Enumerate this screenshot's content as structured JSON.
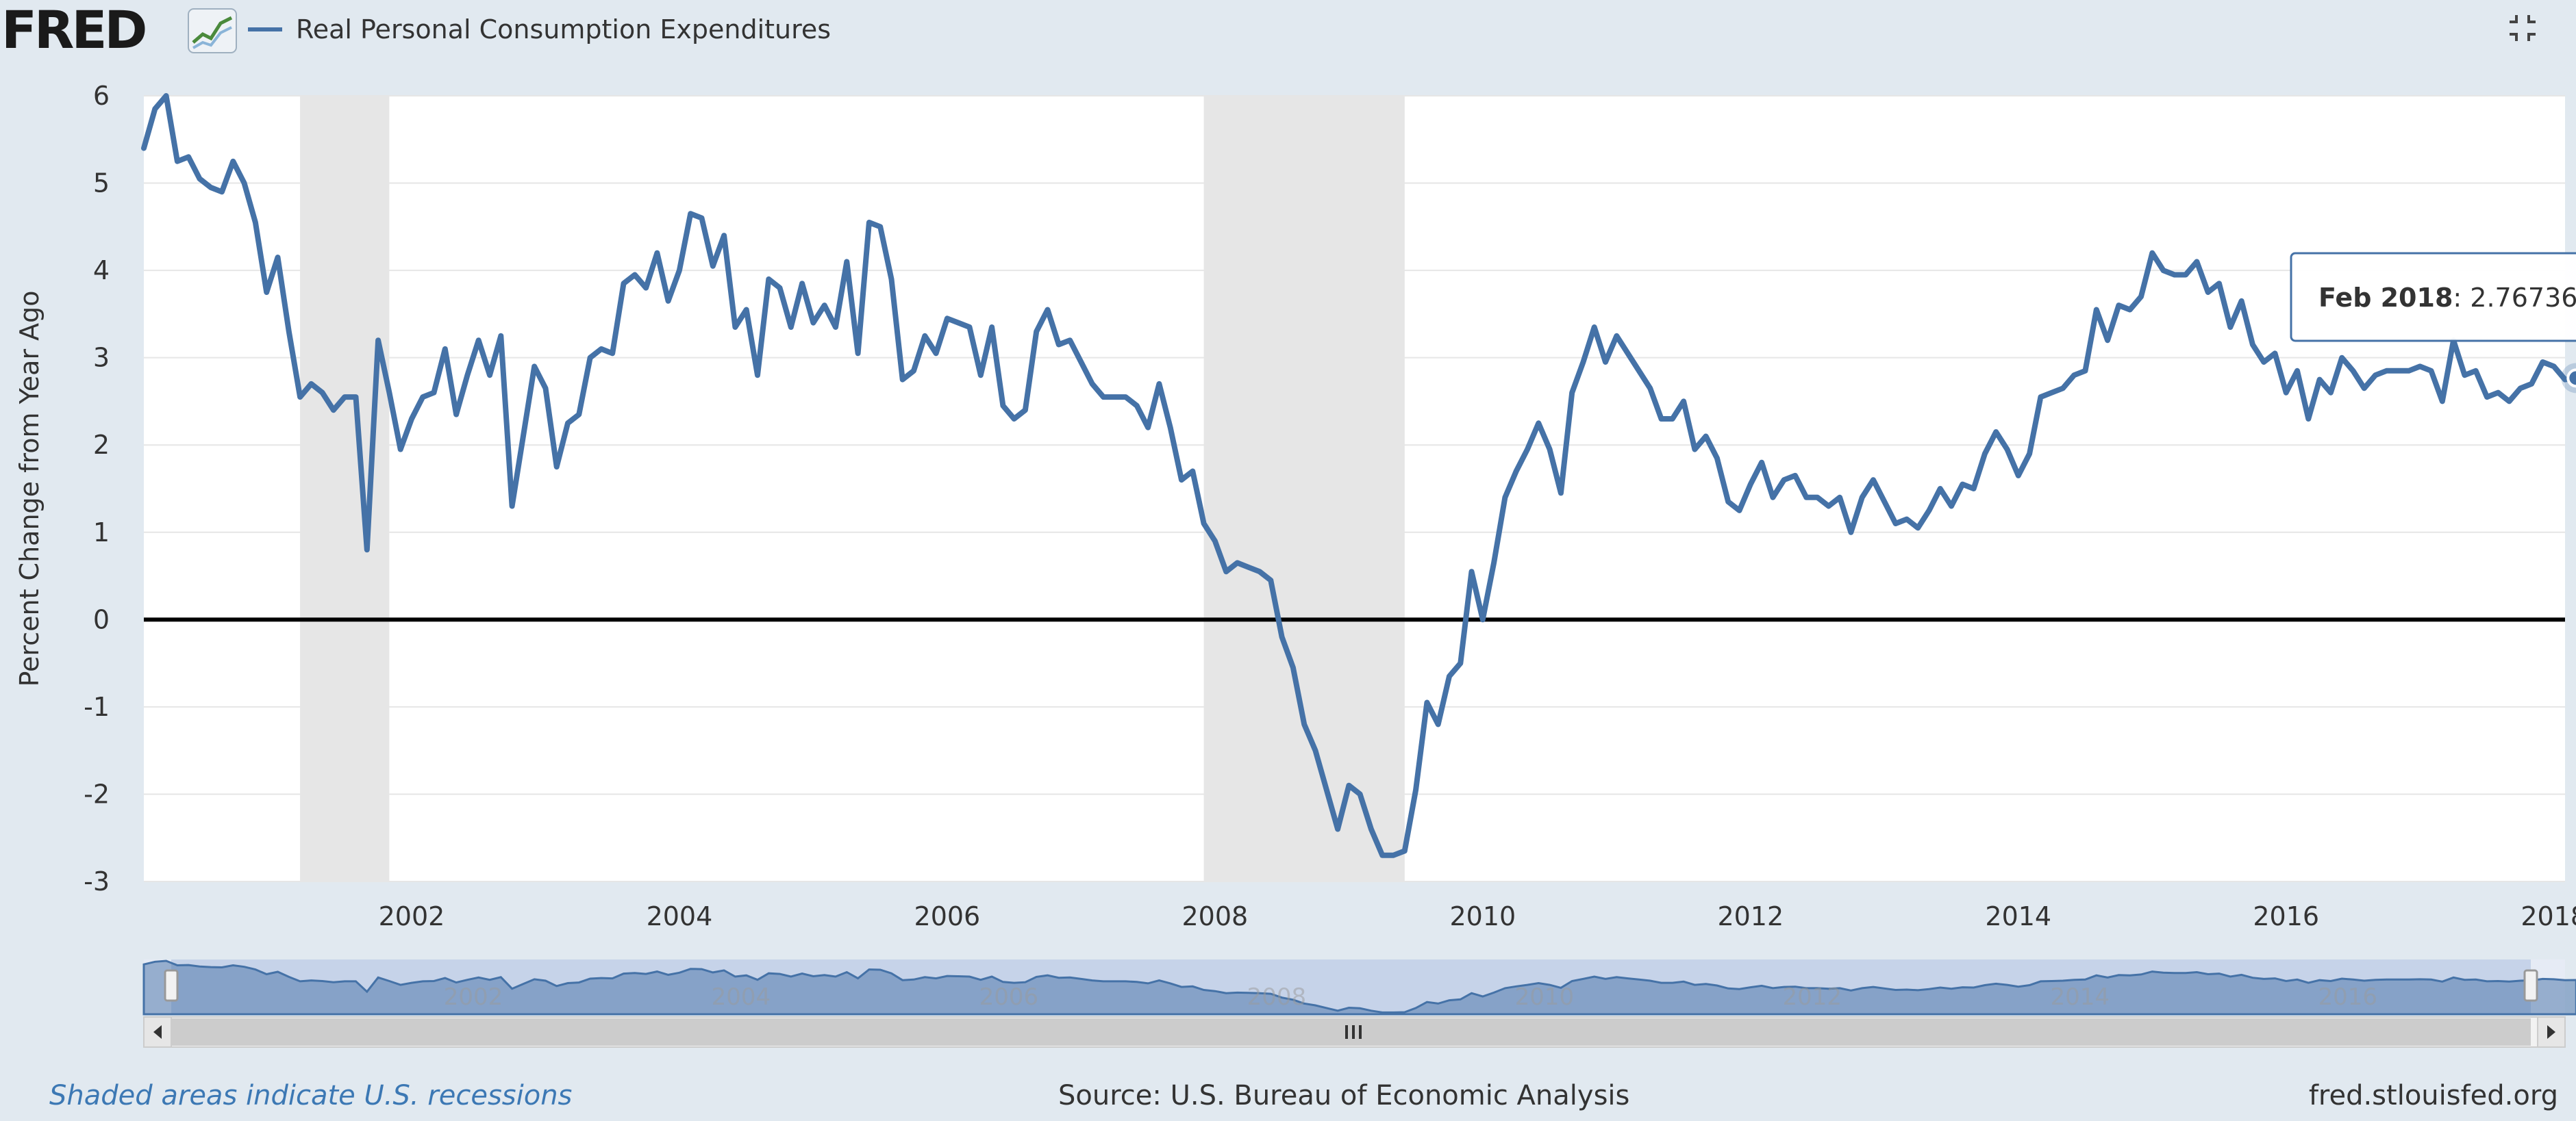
{
  "header": {
    "logo": "FRED",
    "series_name": "Real Personal Consumption Expenditures"
  },
  "colors": {
    "page_bg": "#e1e9f0",
    "series": "#4572a7",
    "recession_band": "#e6e6e6",
    "zero_line": "#000000",
    "navigator_fill": "#b8c9e4"
  },
  "chart_data": {
    "type": "line",
    "title": "",
    "xlabel": "",
    "ylabel": "Percent Change from Year Ago",
    "x_tick_labels": [
      "2002",
      "2004",
      "2006",
      "2008",
      "2010",
      "2012",
      "2014",
      "2016",
      "2018"
    ],
    "y_tick_labels": [
      "6",
      "5",
      "4",
      "3",
      "2",
      "1",
      "0",
      "-1",
      "-2",
      "-3"
    ],
    "xlim": [
      "2000-01",
      "2018-02"
    ],
    "ylim": [
      -3,
      6
    ],
    "grid": true,
    "legend_position": "top-left",
    "recessions": [
      {
        "start": "2001-03",
        "end": "2001-11"
      },
      {
        "start": "2007-12",
        "end": "2009-06"
      }
    ],
    "reference_line": 0,
    "series": [
      {
        "name": "Real Personal Consumption Expenditures",
        "frequency": "monthly",
        "start": "2000-01",
        "values": [
          5.4,
          5.85,
          6.0,
          5.25,
          5.3,
          5.05,
          4.95,
          4.9,
          5.25,
          5.0,
          4.55,
          3.75,
          4.15,
          3.3,
          2.55,
          2.7,
          2.6,
          2.4,
          2.55,
          2.55,
          0.8,
          3.2,
          2.6,
          1.95,
          2.3,
          2.55,
          2.6,
          3.1,
          2.35,
          2.8,
          3.2,
          2.8,
          3.25,
          1.3,
          2.1,
          2.9,
          2.65,
          1.75,
          2.25,
          2.35,
          3.0,
          3.1,
          3.05,
          3.85,
          3.95,
          3.8,
          4.2,
          3.65,
          4.0,
          4.65,
          4.6,
          4.05,
          4.4,
          3.35,
          3.55,
          2.8,
          3.9,
          3.8,
          3.35,
          3.85,
          3.4,
          3.6,
          3.35,
          4.1,
          3.05,
          4.55,
          4.5,
          3.9,
          2.75,
          2.85,
          3.25,
          3.05,
          3.45,
          3.4,
          3.35,
          2.8,
          3.35,
          2.45,
          2.3,
          2.4,
          3.3,
          3.55,
          3.15,
          3.2,
          2.95,
          2.7,
          2.55,
          2.55,
          2.55,
          2.45,
          2.2,
          2.7,
          2.2,
          1.6,
          1.7,
          1.1,
          0.9,
          0.55,
          0.65,
          0.6,
          0.55,
          0.45,
          -0.2,
          -0.55,
          -1.2,
          -1.5,
          -1.95,
          -2.4,
          -1.9,
          -2.0,
          -2.4,
          -2.7,
          -2.7,
          -2.65,
          -1.95,
          -0.95,
          -1.2,
          -0.65,
          -0.5,
          0.55,
          0.0,
          0.65,
          1.4,
          1.7,
          1.95,
          2.25,
          1.95,
          1.45,
          2.6,
          2.95,
          3.35,
          2.95,
          3.25,
          3.05,
          2.85,
          2.65,
          2.3,
          2.3,
          2.5,
          1.95,
          2.1,
          1.85,
          1.35,
          1.25,
          1.55,
          1.8,
          1.4,
          1.6,
          1.65,
          1.4,
          1.4,
          1.3,
          1.4,
          1.0,
          1.4,
          1.6,
          1.35,
          1.1,
          1.15,
          1.05,
          1.25,
          1.5,
          1.3,
          1.55,
          1.5,
          1.9,
          2.15,
          1.95,
          1.65,
          1.9,
          2.55,
          2.6,
          2.65,
          2.8,
          2.85,
          3.55,
          3.2,
          3.6,
          3.55,
          3.7,
          4.2,
          4.0,
          3.95,
          3.95,
          4.1,
          3.75,
          3.85,
          3.35,
          3.65,
          3.15,
          2.95,
          3.05,
          2.6,
          2.85,
          2.3,
          2.75,
          2.6,
          3.0,
          2.85,
          2.65,
          2.8,
          2.85,
          2.85,
          2.85,
          2.9,
          2.85,
          2.5,
          3.2,
          2.8,
          2.85,
          2.55,
          2.6,
          2.5,
          2.65,
          2.7,
          2.95,
          2.9,
          2.75,
          2.76736
        ]
      }
    ],
    "tooltip": {
      "date_label": "Feb 2018",
      "value_label": "2.76736"
    },
    "navigator": {
      "x_tick_labels": [
        "2002",
        "2004",
        "2006",
        "2008",
        "2010",
        "2012",
        "2014",
        "2016",
        "2018"
      ]
    }
  },
  "footer": {
    "recession_note": "Shaded areas indicate U.S. recessions",
    "source": "Source: U.S. Bureau of Economic Analysis",
    "url": "fred.stlouisfed.org"
  }
}
